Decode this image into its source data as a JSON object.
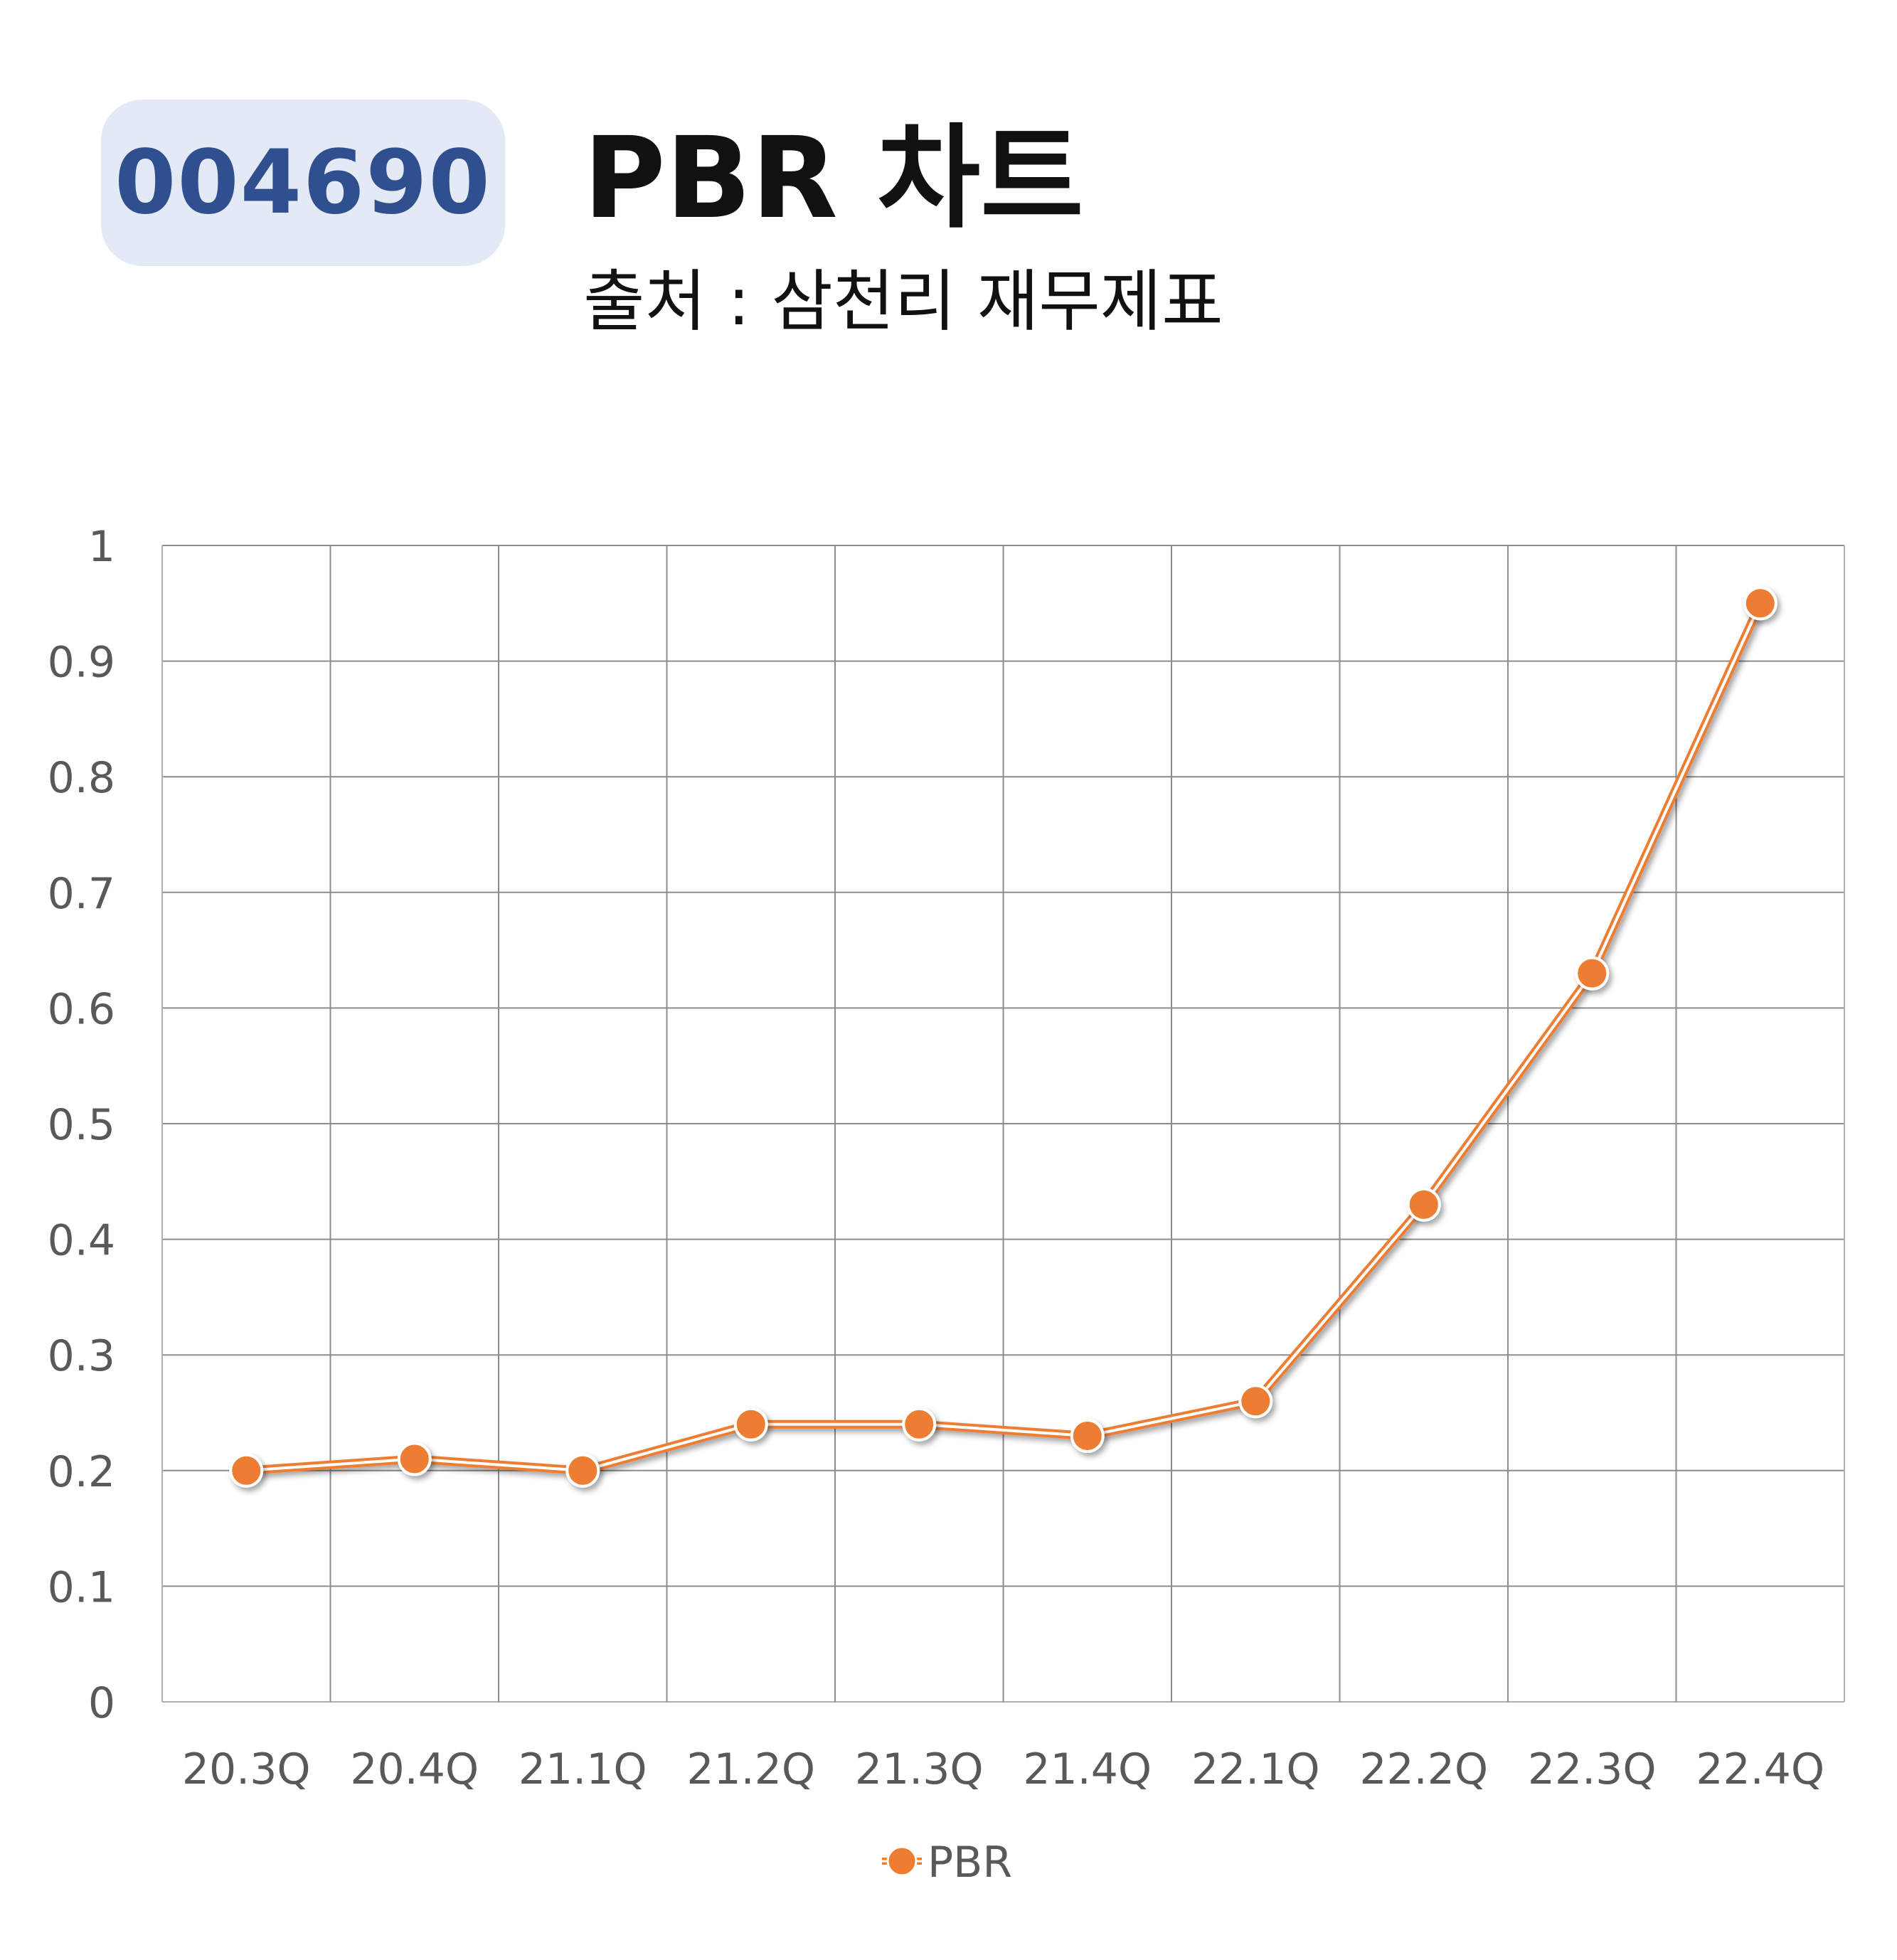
{
  "header": {
    "code": "004690",
    "title": "PBR 차트",
    "subtitle": "출처 : 삼천리 재무제표"
  },
  "colors": {
    "series": "#ed7d31",
    "grid": "#8c8c8c",
    "tick_text": "#595959",
    "badge_bg": "#e3e9f5",
    "badge_text": "#2f4f8f"
  },
  "chart_data": {
    "type": "line",
    "categories": [
      "20.3Q",
      "20.4Q",
      "21.1Q",
      "21.2Q",
      "21.3Q",
      "21.4Q",
      "22.1Q",
      "22.2Q",
      "22.3Q",
      "22.4Q"
    ],
    "series": [
      {
        "name": "PBR",
        "values": [
          0.2,
          0.21,
          0.2,
          0.24,
          0.24,
          0.23,
          0.26,
          0.43,
          0.63,
          0.95
        ]
      }
    ],
    "ylim": [
      0,
      1
    ],
    "yticks": [
      "0",
      "0.1",
      "0.2",
      "0.3",
      "0.4",
      "0.5",
      "0.6",
      "0.7",
      "0.8",
      "0.9",
      "1"
    ],
    "grid": true,
    "legend": "bottom"
  }
}
